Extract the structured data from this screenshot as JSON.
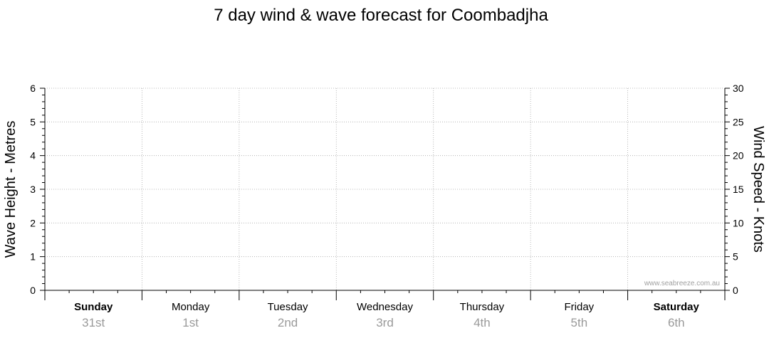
{
  "chart_data": {
    "type": "line",
    "title": "7 day wind & wave forecast for Coombadjha",
    "ylabel_left": "Wave Height - Metres",
    "ylabel_right": "Wind Speed - Knots",
    "ylim_left": [
      0,
      6
    ],
    "ylim_right": [
      0,
      30
    ],
    "yticks_left": [
      "0",
      "1",
      "2",
      "3",
      "4",
      "5",
      "6"
    ],
    "yticks_right": [
      "0",
      "5",
      "10",
      "15",
      "20",
      "25",
      "30"
    ],
    "grid": true,
    "days": [
      {
        "name": "Sunday",
        "date": "31st",
        "bold": true
      },
      {
        "name": "Monday",
        "date": "1st",
        "bold": false
      },
      {
        "name": "Tuesday",
        "date": "2nd",
        "bold": false
      },
      {
        "name": "Wednesday",
        "date": "3rd",
        "bold": false
      },
      {
        "name": "Thursday",
        "date": "4th",
        "bold": false
      },
      {
        "name": "Friday",
        "date": "5th",
        "bold": false
      },
      {
        "name": "Saturday",
        "date": "6th",
        "bold": true
      }
    ],
    "series": [],
    "watermark": "www.seabreeze.com.au"
  }
}
